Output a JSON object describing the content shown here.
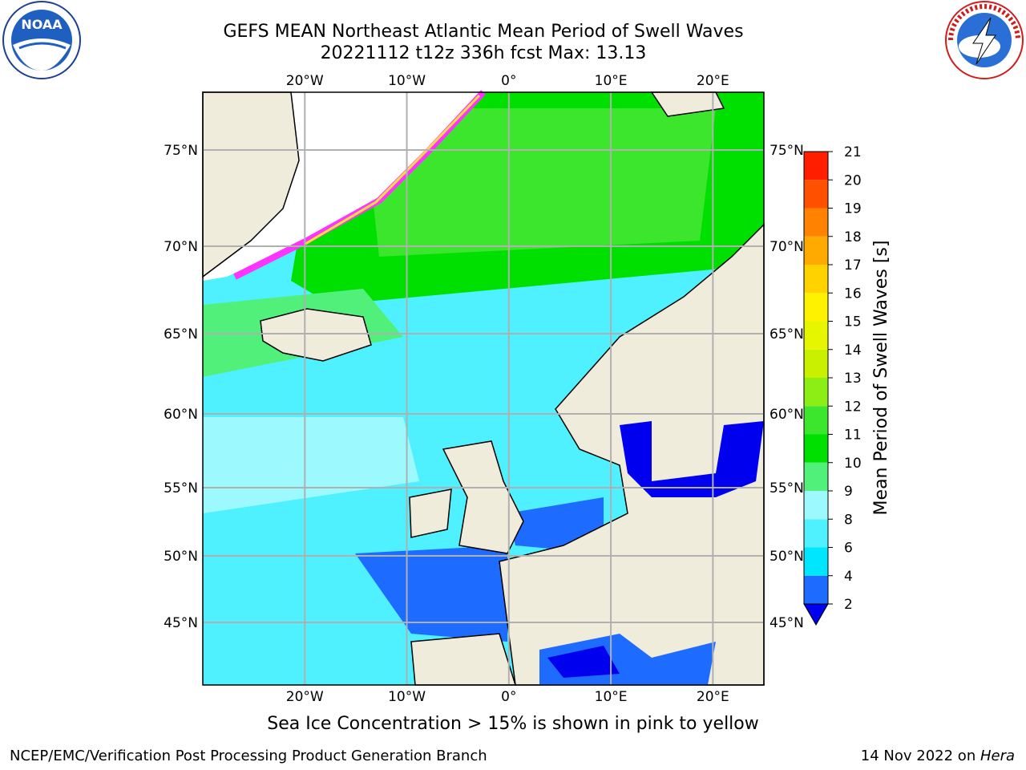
{
  "header": {
    "title_line1": "GEFS MEAN Northeast Atlantic Mean Period of Swell Waves",
    "title_line2": "20221112 t12z 336h fcst   Max: 13.13"
  },
  "logos": {
    "noaa": {
      "text": "NOAA",
      "icon": "noaa-logo-icon"
    },
    "nws": {
      "text": "NATIONAL WEATHER SERVICE",
      "icon": "nws-logo-icon"
    }
  },
  "axes": {
    "top_lon_ticks": [
      "20°W",
      "10°W",
      "0°",
      "10°E",
      "20°E"
    ],
    "bottom_lon_ticks": [
      "20°W",
      "10°W",
      "0°",
      "10°E",
      "20°E"
    ],
    "lat_ticks": [
      "75°N",
      "70°N",
      "65°N",
      "60°N",
      "55°N",
      "50°N",
      "45°N"
    ],
    "lon_values": [
      -20,
      -10,
      0,
      10,
      20
    ],
    "lat_values": [
      75,
      70,
      65,
      60,
      55,
      50,
      45
    ],
    "lon_range": [
      -30,
      25
    ],
    "lat_range": [
      41,
      78
    ]
  },
  "colorbar": {
    "label": "Mean Period of Swell Waves [s]",
    "levels": [
      2,
      4,
      6,
      8,
      9,
      10,
      11,
      12,
      13,
      14,
      15,
      16,
      17,
      18,
      19,
      20,
      21
    ],
    "colors": [
      "#1e6cff",
      "#00e6ff",
      "#4ff0ff",
      "#9cfaff",
      "#50f07a",
      "#00e000",
      "#3ce62c",
      "#8cee14",
      "#c8f000",
      "#e6f500",
      "#fff200",
      "#ffd200",
      "#ffaa00",
      "#ff8200",
      "#ff5000",
      "#ff1e00"
    ],
    "under_color": "#0000ee"
  },
  "map_colors": {
    "land": "#efecdc",
    "ice_free_white": "#ffffff",
    "coast": "#000000",
    "grid": "#b0b0b0"
  },
  "caption": "Sea Ice Concentration > 15% is shown in pink to yellow",
  "footer": {
    "left": "NCEP/EMC/Verification Post Processing Product Generation Branch",
    "right_date": "14 Nov 2022 on ",
    "right_host": "Hera"
  }
}
